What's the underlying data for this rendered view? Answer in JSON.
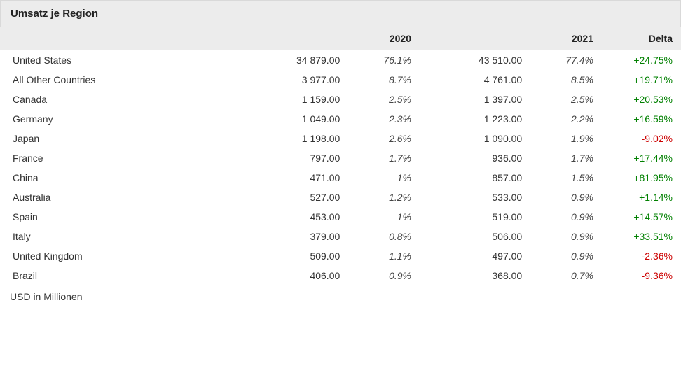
{
  "title": "Umsatz je Region",
  "columns": {
    "name": "",
    "y1_header": "2020",
    "y2_header": "2021",
    "delta_header": "Delta"
  },
  "footnote": "USD in Millionen",
  "colors": {
    "positive": "#008000",
    "negative": "#cc0000",
    "header_bg": "#ececec",
    "border": "#d9d9d9",
    "text": "#333333"
  },
  "rows": [
    {
      "name": "United States",
      "y1": "34 879.00",
      "p1": "76.1%",
      "y2": "43 510.00",
      "p2": "77.4%",
      "delta": "+24.75%",
      "dir": "pos"
    },
    {
      "name": "All Other Countries",
      "y1": "3 977.00",
      "p1": "8.7%",
      "y2": "4 761.00",
      "p2": "8.5%",
      "delta": "+19.71%",
      "dir": "pos"
    },
    {
      "name": "Canada",
      "y1": "1 159.00",
      "p1": "2.5%",
      "y2": "1 397.00",
      "p2": "2.5%",
      "delta": "+20.53%",
      "dir": "pos"
    },
    {
      "name": "Germany",
      "y1": "1 049.00",
      "p1": "2.3%",
      "y2": "1 223.00",
      "p2": "2.2%",
      "delta": "+16.59%",
      "dir": "pos"
    },
    {
      "name": "Japan",
      "y1": "1 198.00",
      "p1": "2.6%",
      "y2": "1 090.00",
      "p2": "1.9%",
      "delta": "-9.02%",
      "dir": "neg"
    },
    {
      "name": "France",
      "y1": "797.00",
      "p1": "1.7%",
      "y2": "936.00",
      "p2": "1.7%",
      "delta": "+17.44%",
      "dir": "pos"
    },
    {
      "name": "China",
      "y1": "471.00",
      "p1": "1%",
      "y2": "857.00",
      "p2": "1.5%",
      "delta": "+81.95%",
      "dir": "pos"
    },
    {
      "name": "Australia",
      "y1": "527.00",
      "p1": "1.2%",
      "y2": "533.00",
      "p2": "0.9%",
      "delta": "+1.14%",
      "dir": "pos"
    },
    {
      "name": "Spain",
      "y1": "453.00",
      "p1": "1%",
      "y2": "519.00",
      "p2": "0.9%",
      "delta": "+14.57%",
      "dir": "pos"
    },
    {
      "name": "Italy",
      "y1": "379.00",
      "p1": "0.8%",
      "y2": "506.00",
      "p2": "0.9%",
      "delta": "+33.51%",
      "dir": "pos"
    },
    {
      "name": "United Kingdom",
      "y1": "509.00",
      "p1": "1.1%",
      "y2": "497.00",
      "p2": "0.9%",
      "delta": "-2.36%",
      "dir": "neg"
    },
    {
      "name": "Brazil",
      "y1": "406.00",
      "p1": "0.9%",
      "y2": "368.00",
      "p2": "0.7%",
      "delta": "-9.36%",
      "dir": "neg"
    }
  ],
  "table_style": {
    "type": "table",
    "name_align": "left",
    "value_align": "right",
    "pct_font_style": "italic",
    "fontsize": 14,
    "title_fontsize": 15,
    "row_padding_v": 6
  }
}
